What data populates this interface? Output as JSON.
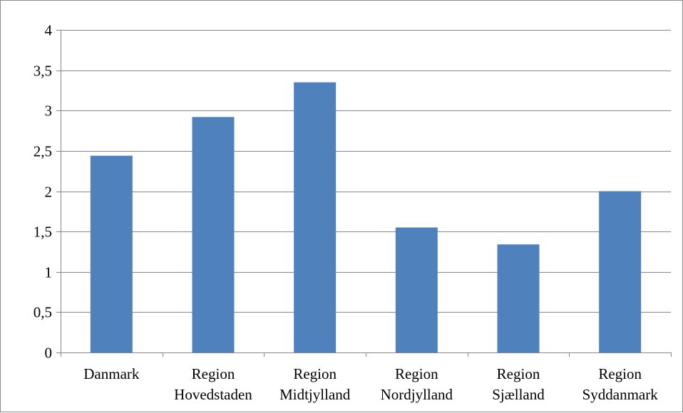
{
  "chart_data": {
    "type": "bar",
    "categories": [
      [
        "Danmark"
      ],
      [
        "Region",
        "Hovedstaden"
      ],
      [
        "Region",
        "Midtjylland"
      ],
      [
        "Region",
        "Nordjylland"
      ],
      [
        "Region",
        "Sjælland"
      ],
      [
        "Region",
        "Syddanmark"
      ]
    ],
    "values": [
      2.44,
      2.92,
      3.35,
      1.55,
      1.34,
      2.0
    ],
    "ylim": [
      0,
      4
    ],
    "yticks": [
      0,
      0.5,
      1,
      1.5,
      2,
      2.5,
      3,
      3.5,
      4
    ],
    "ytick_labels": [
      "0",
      "0,5",
      "1",
      "1,5",
      "2",
      "2,5",
      "3",
      "3,5",
      "4"
    ],
    "grid": true,
    "bar_color": "#4f81bd",
    "grid_color": "#868686",
    "title": "",
    "xlabel": "",
    "ylabel": "",
    "legend": false
  }
}
